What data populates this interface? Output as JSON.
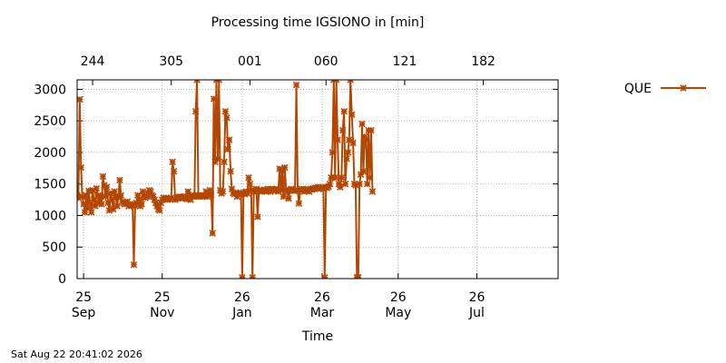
{
  "chart_data": {
    "type": "line",
    "title": "Processing time IGSIONO in [min]",
    "xlabel": "Time",
    "ylabel": "",
    "ylim": [
      0,
      3150
    ],
    "xlim": [
      "2026-08-20",
      "2027-08-28"
    ],
    "yticks": [
      0,
      500,
      1000,
      1500,
      2000,
      2500,
      3000
    ],
    "grid": true,
    "legend_position": "top-right, outside plot",
    "line_color": "#b34700",
    "marker": "asterisk",
    "x_ticks": [
      {
        "date": "2026-08-25",
        "day": "25",
        "month": "Sep"
      },
      {
        "date": "2026-10-25",
        "day": "25",
        "month": "Nov"
      },
      {
        "date": "2026-12-26",
        "day": "26",
        "month": "Jan"
      },
      {
        "date": "2027-02-26",
        "day": "26",
        "month": "Mar"
      },
      {
        "date": "2027-04-26",
        "day": "26",
        "month": "May"
      },
      {
        "date": "2027-06-26",
        "day": "26",
        "month": "Jul"
      }
    ],
    "top_ticks": [
      {
        "date": "2026-09-01",
        "label": "244"
      },
      {
        "date": "2026-11-01",
        "label": "305"
      },
      {
        "date": "2027-01-01",
        "label": "001"
      },
      {
        "date": "2027-03-01",
        "label": "060"
      },
      {
        "date": "2027-05-01",
        "label": "121"
      },
      {
        "date": "2027-07-01",
        "label": "182"
      }
    ],
    "series": [
      {
        "name": "QUE",
        "points": [
          [
            "2026-08-20",
            1320
          ],
          [
            "2026-08-21",
            1280
          ],
          [
            "2026-08-22",
            2840
          ],
          [
            "2026-08-23",
            1760
          ],
          [
            "2026-08-24",
            1300
          ],
          [
            "2026-08-25",
            1180
          ],
          [
            "2026-08-26",
            1050
          ],
          [
            "2026-08-27",
            1320
          ],
          [
            "2026-08-28",
            1120
          ],
          [
            "2026-08-29",
            1390
          ],
          [
            "2026-08-30",
            1200
          ],
          [
            "2026-08-31",
            1050
          ],
          [
            "2026-09-01",
            1400
          ],
          [
            "2026-09-02",
            1250
          ],
          [
            "2026-09-03",
            1150
          ],
          [
            "2026-09-04",
            1430
          ],
          [
            "2026-09-05",
            1300
          ],
          [
            "2026-09-06",
            1200
          ],
          [
            "2026-09-07",
            1320
          ],
          [
            "2026-09-08",
            1180
          ],
          [
            "2026-09-09",
            1620
          ],
          [
            "2026-09-10",
            1480
          ],
          [
            "2026-09-11",
            1300
          ],
          [
            "2026-09-12",
            1450
          ],
          [
            "2026-09-13",
            1200
          ],
          [
            "2026-09-14",
            1080
          ],
          [
            "2026-09-15",
            1350
          ],
          [
            "2026-09-16",
            1250
          ],
          [
            "2026-09-17",
            1100
          ],
          [
            "2026-09-18",
            1380
          ],
          [
            "2026-09-19",
            1280
          ],
          [
            "2026-09-20",
            1150
          ],
          [
            "2026-09-21",
            1300
          ],
          [
            "2026-09-22",
            1560
          ],
          [
            "2026-09-23",
            1320
          ],
          [
            "2026-09-24",
            1220
          ],
          [
            "2026-09-25",
            1200
          ],
          [
            "2026-09-26",
            1180
          ],
          [
            "2026-09-27",
            1200
          ],
          [
            "2026-09-28",
            1220
          ],
          [
            "2026-09-29",
            1150
          ],
          [
            "2026-09-30",
            1180
          ],
          [
            "2026-10-01",
            1160
          ],
          [
            "2026-10-02",
            1180
          ],
          [
            "2026-10-03",
            220
          ],
          [
            "2026-10-04",
            1150
          ],
          [
            "2026-10-05",
            1200
          ],
          [
            "2026-10-06",
            1320
          ],
          [
            "2026-10-07",
            1260
          ],
          [
            "2026-10-08",
            1150
          ],
          [
            "2026-10-09",
            1180
          ],
          [
            "2026-10-10",
            1380
          ],
          [
            "2026-10-11",
            1320
          ],
          [
            "2026-10-12",
            1280
          ],
          [
            "2026-10-13",
            1300
          ],
          [
            "2026-10-14",
            1350
          ],
          [
            "2026-10-15",
            1400
          ],
          [
            "2026-10-16",
            1380
          ],
          [
            "2026-10-17",
            1320
          ],
          [
            "2026-10-18",
            1300
          ],
          [
            "2026-10-19",
            1250
          ],
          [
            "2026-10-20",
            1200
          ],
          [
            "2026-10-21",
            1150
          ],
          [
            "2026-10-22",
            1100
          ],
          [
            "2026-10-23",
            1080
          ],
          [
            "2026-10-24",
            1200
          ],
          [
            "2026-10-25",
            1250
          ],
          [
            "2026-10-26",
            1280
          ],
          [
            "2026-10-27",
            1260
          ],
          [
            "2026-10-28",
            1280
          ],
          [
            "2026-10-29",
            1250
          ],
          [
            "2026-10-30",
            1270
          ],
          [
            "2026-10-31",
            1260
          ],
          [
            "2026-11-01",
            1280
          ],
          [
            "2026-11-02",
            1850
          ],
          [
            "2026-11-03",
            1700
          ],
          [
            "2026-11-04",
            1250
          ],
          [
            "2026-11-05",
            1280
          ],
          [
            "2026-11-06",
            1270
          ],
          [
            "2026-11-07",
            1290
          ],
          [
            "2026-11-08",
            1300
          ],
          [
            "2026-11-09",
            1280
          ],
          [
            "2026-11-10",
            1270
          ],
          [
            "2026-11-11",
            1300
          ],
          [
            "2026-11-12",
            1280
          ],
          [
            "2026-11-13",
            1260
          ],
          [
            "2026-11-14",
            1380
          ],
          [
            "2026-11-15",
            1290
          ],
          [
            "2026-11-16",
            1250
          ],
          [
            "2026-11-17",
            1300
          ],
          [
            "2026-11-18",
            1320
          ],
          [
            "2026-11-19",
            1300
          ],
          [
            "2026-11-20",
            2650
          ],
          [
            "2026-11-21",
            3150
          ],
          [
            "2026-11-22",
            1300
          ],
          [
            "2026-11-23",
            1320
          ],
          [
            "2026-11-24",
            1310
          ],
          [
            "2026-11-25",
            1300
          ],
          [
            "2026-11-26",
            1320
          ],
          [
            "2026-11-27",
            1300
          ],
          [
            "2026-11-28",
            1380
          ],
          [
            "2026-11-29",
            1300
          ],
          [
            "2026-11-30",
            1320
          ],
          [
            "2026-12-01",
            1400
          ],
          [
            "2026-12-02",
            1330
          ],
          [
            "2026-12-03",
            720
          ],
          [
            "2026-12-04",
            2850
          ],
          [
            "2026-12-05",
            1850
          ],
          [
            "2026-12-06",
            3150
          ],
          [
            "2026-12-07",
            1900
          ],
          [
            "2026-12-08",
            3150
          ],
          [
            "2026-12-09",
            1400
          ],
          [
            "2026-12-10",
            1350
          ],
          [
            "2026-12-11",
            1380
          ],
          [
            "2026-12-12",
            1850
          ],
          [
            "2026-12-13",
            2650
          ],
          [
            "2026-12-14",
            2550
          ],
          [
            "2026-12-15",
            2050
          ],
          [
            "2026-12-16",
            2200
          ],
          [
            "2026-12-17",
            1700
          ],
          [
            "2026-12-18",
            1420
          ],
          [
            "2026-12-19",
            1360
          ],
          [
            "2026-12-20",
            1340
          ],
          [
            "2026-12-21",
            1360
          ],
          [
            "2026-12-22",
            1300
          ],
          [
            "2026-12-23",
            1350
          ],
          [
            "2026-12-24",
            1340
          ],
          [
            "2026-12-25",
            1360
          ],
          [
            "2026-12-26",
            20
          ],
          [
            "2026-12-27",
            1360
          ],
          [
            "2026-12-28",
            1340
          ],
          [
            "2026-12-29",
            1380
          ],
          [
            "2026-12-30",
            1350
          ],
          [
            "2026-12-31",
            1600
          ],
          [
            "2027-01-01",
            1500
          ],
          [
            "2027-01-02",
            1400
          ],
          [
            "2027-01-03",
            20
          ],
          [
            "2027-01-04",
            1400
          ],
          [
            "2027-01-05",
            1380
          ],
          [
            "2027-01-06",
            1420
          ],
          [
            "2027-01-07",
            980
          ],
          [
            "2027-01-08",
            1400
          ],
          [
            "2027-01-09",
            1380
          ],
          [
            "2027-01-10",
            1400
          ],
          [
            "2027-01-11",
            1390
          ],
          [
            "2027-01-12",
            1410
          ],
          [
            "2027-01-13",
            1400
          ],
          [
            "2027-01-14",
            1380
          ],
          [
            "2027-01-15",
            1420
          ],
          [
            "2027-01-16",
            1400
          ],
          [
            "2027-01-17",
            1380
          ],
          [
            "2027-01-18",
            1420
          ],
          [
            "2027-01-19",
            1400
          ],
          [
            "2027-01-20",
            1410
          ],
          [
            "2027-01-21",
            1420
          ],
          [
            "2027-01-22",
            1400
          ],
          [
            "2027-01-23",
            1380
          ],
          [
            "2027-01-24",
            1740
          ],
          [
            "2027-01-25",
            1400
          ],
          [
            "2027-01-26",
            1700
          ],
          [
            "2027-01-27",
            1300
          ],
          [
            "2027-01-28",
            1760
          ],
          [
            "2027-01-29",
            1400
          ],
          [
            "2027-01-30",
            1380
          ],
          [
            "2027-01-31",
            1270
          ],
          [
            "2027-02-01",
            1400
          ],
          [
            "2027-02-02",
            1420
          ],
          [
            "2027-02-03",
            1410
          ],
          [
            "2027-02-04",
            1390
          ],
          [
            "2027-02-05",
            1400
          ],
          [
            "2027-02-06",
            3070
          ],
          [
            "2027-02-07",
            1400
          ],
          [
            "2027-02-08",
            1190
          ],
          [
            "2027-02-09",
            1400
          ],
          [
            "2027-02-10",
            1420
          ],
          [
            "2027-02-11",
            1410
          ],
          [
            "2027-02-12",
            1380
          ],
          [
            "2027-02-13",
            1410
          ],
          [
            "2027-02-14",
            1400
          ],
          [
            "2027-02-15",
            1420
          ],
          [
            "2027-02-16",
            1380
          ],
          [
            "2027-02-17",
            1420
          ],
          [
            "2027-02-18",
            1410
          ],
          [
            "2027-02-19",
            1430
          ],
          [
            "2027-02-20",
            1420
          ],
          [
            "2027-02-21",
            1440
          ],
          [
            "2027-02-22",
            1430
          ],
          [
            "2027-02-23",
            1450
          ],
          [
            "2027-02-24",
            1440
          ],
          [
            "2027-02-25",
            1430
          ],
          [
            "2027-02-26",
            1440
          ],
          [
            "2027-02-27",
            1420
          ],
          [
            "2027-02-28",
            20
          ],
          [
            "2027-03-01",
            1450
          ],
          [
            "2027-03-02",
            1440
          ],
          [
            "2027-03-03",
            1460
          ],
          [
            "2027-03-04",
            1500
          ],
          [
            "2027-03-05",
            1600
          ],
          [
            "2027-03-06",
            2000
          ],
          [
            "2027-03-07",
            3150
          ],
          [
            "2027-03-08",
            1600
          ],
          [
            "2027-03-09",
            3150
          ],
          [
            "2027-03-10",
            2200
          ],
          [
            "2027-03-11",
            1500
          ],
          [
            "2027-03-12",
            1450
          ],
          [
            "2027-03-13",
            1600
          ],
          [
            "2027-03-14",
            2350
          ],
          [
            "2027-03-15",
            2650
          ],
          [
            "2027-03-16",
            1500
          ],
          [
            "2027-03-17",
            1900
          ],
          [
            "2027-03-18",
            2000
          ],
          [
            "2027-03-19",
            2200
          ],
          [
            "2027-03-20",
            3150
          ],
          [
            "2027-03-21",
            2600
          ],
          [
            "2027-03-22",
            2150
          ],
          [
            "2027-03-23",
            1500
          ],
          [
            "2027-03-24",
            1480
          ],
          [
            "2027-03-25",
            20
          ],
          [
            "2027-03-26",
            20
          ],
          [
            "2027-03-27",
            1500
          ],
          [
            "2027-03-28",
            1650
          ],
          [
            "2027-03-29",
            2450
          ],
          [
            "2027-03-30",
            1700
          ],
          [
            "2027-03-31",
            2250
          ],
          [
            "2027-04-01",
            2200
          ],
          [
            "2027-04-02",
            1500
          ],
          [
            "2027-04-03",
            2350
          ],
          [
            "2027-04-04",
            1600
          ],
          [
            "2027-04-05",
            2350
          ],
          [
            "2027-04-06",
            1380
          ]
        ]
      }
    ]
  },
  "footer": {
    "timestamp": "Sat Aug 22 20:41:02 2026"
  }
}
